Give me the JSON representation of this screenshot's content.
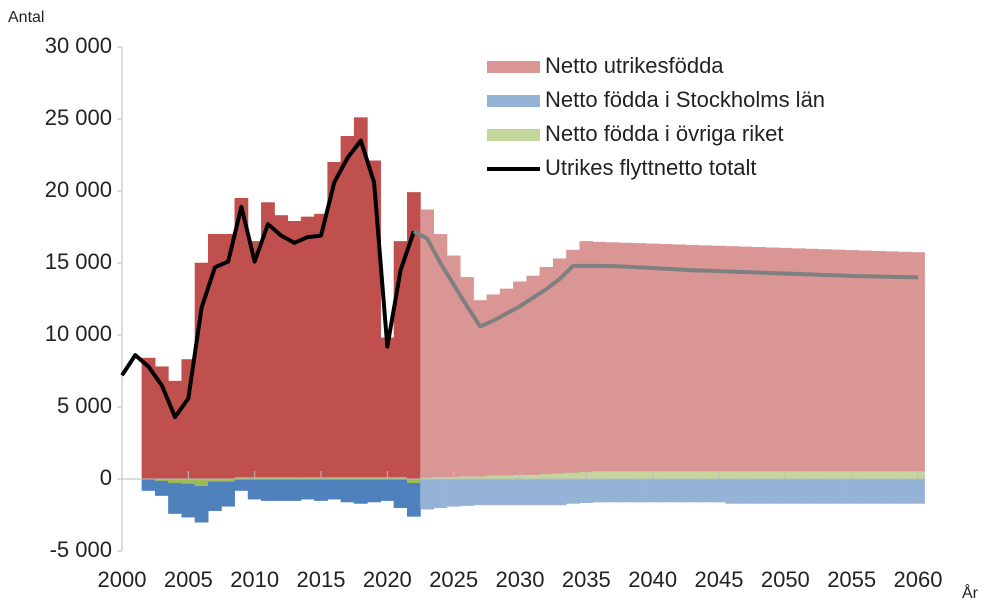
{
  "chart_data": {
    "type": "stacked_bar_line",
    "ylabel": "Antal",
    "xlabel": "År",
    "x": [
      2000,
      2001,
      2002,
      2003,
      2004,
      2005,
      2006,
      2007,
      2008,
      2009,
      2010,
      2011,
      2012,
      2013,
      2014,
      2015,
      2016,
      2017,
      2018,
      2019,
      2020,
      2021,
      2022,
      2023,
      2024,
      2025,
      2026,
      2027,
      2028,
      2029,
      2030,
      2031,
      2032,
      2033,
      2034,
      2035,
      2036,
      2037,
      2038,
      2039,
      2040,
      2041,
      2042,
      2043,
      2044,
      2045,
      2046,
      2047,
      2048,
      2049,
      2050,
      2051,
      2052,
      2053,
      2054,
      2055,
      2056,
      2057,
      2058,
      2059,
      2060
    ],
    "forecast_from": 2023,
    "bar_series": [
      {
        "name": "Netto födda i övriga riket",
        "color": "#9bbb59",
        "forecast_color": "#c3d69b",
        "values": [
          null,
          null,
          0,
          -150,
          -300,
          -350,
          -500,
          -200,
          -200,
          150,
          150,
          150,
          150,
          150,
          150,
          150,
          150,
          150,
          150,
          150,
          150,
          150,
          -300,
          100,
          150,
          150,
          200,
          200,
          250,
          250,
          300,
          300,
          350,
          400,
          450,
          500,
          550,
          550,
          550,
          550,
          550,
          550,
          550,
          550,
          550,
          550,
          550,
          550,
          550,
          550,
          550,
          550,
          550,
          550,
          550,
          550,
          550,
          550,
          550,
          550,
          550
        ]
      },
      {
        "name": "Netto födda i Stockholms län",
        "color": "#4f81bd",
        "forecast_color": "#95b3d7",
        "values": [
          null,
          null,
          -800,
          -1000,
          -2100,
          -2300,
          -2500,
          -2000,
          -1700,
          -800,
          -1400,
          -1500,
          -1500,
          -1500,
          -1400,
          -1500,
          -1400,
          -1600,
          -1700,
          -1600,
          -1500,
          -2000,
          -2300,
          -2100,
          -2000,
          -1900,
          -1850,
          -1800,
          -1800,
          -1800,
          -1800,
          -1800,
          -1800,
          -1800,
          -1700,
          -1650,
          -1600,
          -1600,
          -1600,
          -1600,
          -1600,
          -1600,
          -1600,
          -1600,
          -1600,
          -1600,
          -1700,
          -1700,
          -1700,
          -1700,
          -1700,
          -1700,
          -1700,
          -1700,
          -1700,
          -1700,
          -1700,
          -1700,
          -1700,
          -1700,
          -1700
        ]
      },
      {
        "name": "Netto utrikesfödda",
        "color": "#c0504d",
        "forecast_color": "#d99694",
        "values": [
          null,
          null,
          8400,
          7800,
          6800,
          8300,
          15000,
          17000,
          17000,
          19350,
          16350,
          19050,
          18150,
          17750,
          18050,
          18250,
          21850,
          23650,
          24950,
          21950,
          9650,
          16350,
          19900,
          18600,
          16850,
          15350,
          13800,
          12200,
          12550,
          12950,
          13400,
          13800,
          14350,
          14900,
          15450,
          16000,
          15900,
          15870,
          15840,
          15810,
          15780,
          15750,
          15720,
          15690,
          15660,
          15630,
          15600,
          15570,
          15540,
          15510,
          15480,
          15450,
          15420,
          15390,
          15360,
          15330,
          15300,
          15270,
          15240,
          15210,
          15180
        ]
      }
    ],
    "line_series": [
      {
        "name": "Utrikes flyttnetto totalt",
        "color": "#000000",
        "values": [
          7200,
          8600,
          7800,
          6500,
          4300,
          5600,
          11900,
          14700,
          15100,
          18900,
          15100,
          17700,
          16900,
          16400,
          16800,
          16900,
          20600,
          22300,
          23500,
          20600,
          9200,
          14500,
          17200,
          null,
          null,
          null,
          null,
          null,
          null,
          null,
          null,
          null,
          null,
          null,
          null,
          null,
          null,
          null,
          null,
          null,
          null,
          null,
          null,
          null,
          null,
          null,
          null,
          null,
          null,
          null,
          null,
          null,
          null,
          null,
          null,
          null,
          null,
          null,
          null,
          null,
          null
        ]
      },
      {
        "color": "#7f7f7f",
        "values": [
          null,
          null,
          null,
          null,
          null,
          null,
          null,
          null,
          null,
          null,
          null,
          null,
          null,
          null,
          null,
          null,
          null,
          null,
          null,
          null,
          null,
          null,
          17200,
          16700,
          15000,
          13500,
          12000,
          10600,
          11000,
          11500,
          12000,
          12600,
          13200,
          13900,
          14800,
          14800,
          14800,
          14780,
          14750,
          14700,
          14650,
          14600,
          14550,
          14500,
          14470,
          14440,
          14400,
          14370,
          14340,
          14300,
          14270,
          14240,
          14200,
          14170,
          14140,
          14100,
          14080,
          14060,
          14040,
          14020,
          14000
        ]
      }
    ],
    "xlim": [
      2000,
      2060
    ],
    "xticks": [
      2000,
      2005,
      2010,
      2015,
      2020,
      2025,
      2030,
      2035,
      2040,
      2045,
      2050,
      2055,
      2060
    ],
    "ylim": [
      -5000,
      30000
    ],
    "yticks": [
      {
        "value": -5000,
        "label": "-5 000"
      },
      0,
      {
        "value": 5000,
        "label": "5 000"
      },
      {
        "value": 10000,
        "label": "10 000"
      },
      {
        "value": 15000,
        "label": "15 000"
      },
      {
        "value": 20000,
        "label": "20 000"
      },
      {
        "value": 25000,
        "label": "25 000"
      },
      {
        "value": 30000,
        "label": "30 000"
      }
    ],
    "grid": false,
    "legend": "upper right"
  }
}
